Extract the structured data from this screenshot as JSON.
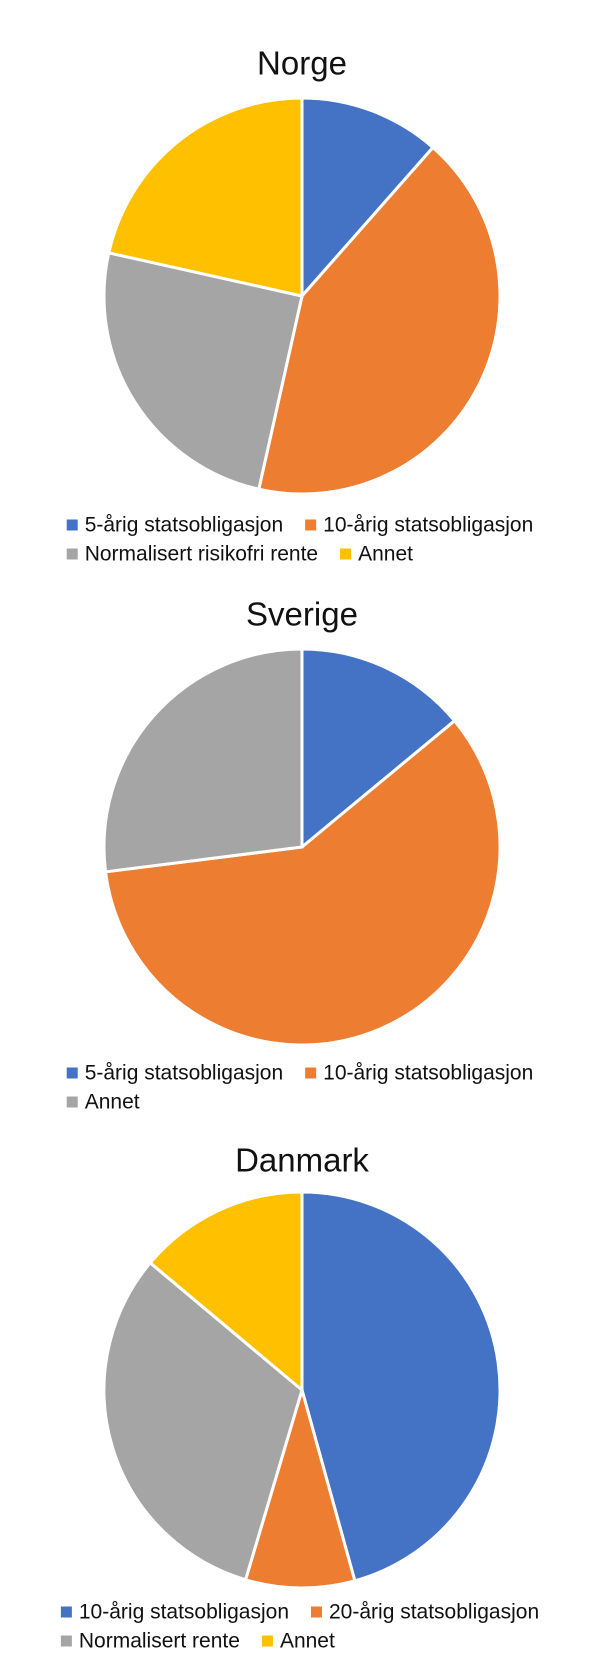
{
  "chart_data": [
    {
      "type": "pie",
      "title": "Norge",
      "categories": [
        "5-årig statsobligasjon",
        "10-årig statsobligasjon",
        "Normalisert risikofri rente",
        "Annet"
      ],
      "values": [
        11.5,
        42,
        25,
        21.5
      ],
      "colors": [
        "#4472c4",
        "#ed7d31",
        "#a5a5a5",
        "#ffc000"
      ]
    },
    {
      "type": "pie",
      "title": "Sverige",
      "categories": [
        "5-årig statsobligasjon",
        "10-årig statsobligasjon",
        "Annet"
      ],
      "values": [
        14,
        59,
        27
      ],
      "colors": [
        "#4472c4",
        "#ed7d31",
        "#a5a5a5"
      ]
    },
    {
      "type": "pie",
      "title": "Danmark",
      "categories": [
        "10-årig statsobligasjon",
        "20-årig statsobligasjon",
        "Normalisert rente",
        "Annet"
      ],
      "values": [
        45.7,
        8.9,
        31.5,
        13.9
      ],
      "colors": [
        "#4472c4",
        "#ed7d31",
        "#a5a5a5",
        "#ffc000"
      ]
    }
  ]
}
